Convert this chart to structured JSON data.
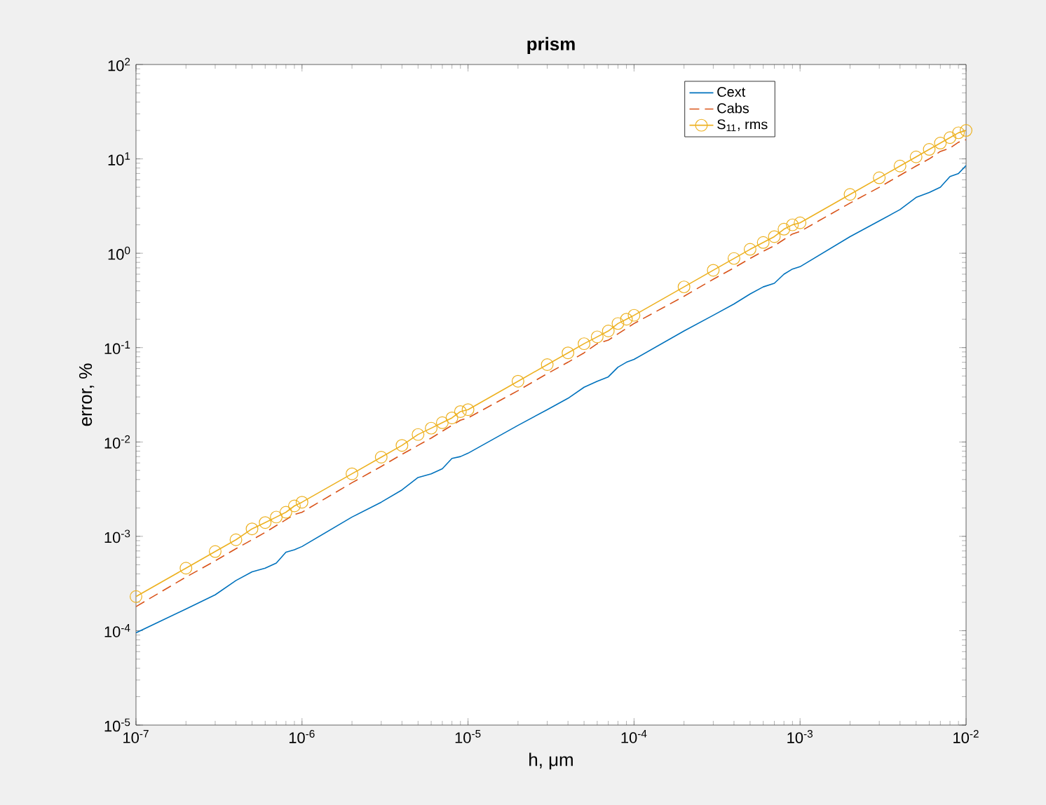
{
  "chart_data": {
    "type": "line",
    "title": "prism",
    "xlabel": "h, μm",
    "ylabel": "error, %",
    "x": [
      1e-07,
      2e-07,
      3e-07,
      4e-07,
      5e-07,
      6e-07,
      7e-07,
      8e-07,
      9e-07,
      1e-06,
      2e-06,
      3e-06,
      4e-06,
      5e-06,
      6e-06,
      7e-06,
      8e-06,
      9e-06,
      1e-05,
      2e-05,
      3e-05,
      4e-05,
      5e-05,
      6e-05,
      7e-05,
      8e-05,
      9e-05,
      0.0001,
      0.0002,
      0.0003,
      0.0004,
      0.0005,
      0.0006,
      0.0007,
      0.0008,
      0.0009,
      0.001,
      0.002,
      0.003,
      0.004,
      0.005,
      0.006,
      0.007,
      0.008,
      0.009,
      0.01
    ],
    "series": [
      {
        "name": "Cext",
        "color": "#0072bd",
        "marker": "none",
        "line_style": "solid",
        "values": [
          9.5e-05,
          0.00017,
          0.00024,
          0.00034,
          0.00042,
          0.00046,
          0.00052,
          0.00068,
          0.00072,
          0.00078,
          0.0016,
          0.0023,
          0.0031,
          0.0042,
          0.0046,
          0.0052,
          0.0067,
          0.007,
          0.0076,
          0.015,
          0.022,
          0.029,
          0.038,
          0.044,
          0.049,
          0.062,
          0.07,
          0.075,
          0.15,
          0.22,
          0.29,
          0.37,
          0.44,
          0.48,
          0.6,
          0.68,
          0.72,
          1.5,
          2.2,
          2.9,
          3.9,
          4.4,
          5.0,
          6.5,
          7.0,
          8.5
        ]
      },
      {
        "name": "Cabs",
        "color": "#d95319",
        "marker": "none",
        "line_style": "dashed",
        "values": [
          0.00018,
          0.00037,
          0.00055,
          0.00074,
          0.00092,
          0.0011,
          0.0013,
          0.0015,
          0.0017,
          0.0018,
          0.0037,
          0.0055,
          0.0074,
          0.0092,
          0.011,
          0.013,
          0.015,
          0.017,
          0.018,
          0.035,
          0.053,
          0.07,
          0.088,
          0.11,
          0.12,
          0.14,
          0.16,
          0.18,
          0.35,
          0.53,
          0.7,
          0.88,
          1.05,
          1.2,
          1.4,
          1.6,
          1.7,
          3.4,
          5,
          6.7,
          8.4,
          10,
          12,
          13,
          15,
          16
        ]
      },
      {
        "name": "S$_{11}$, rms",
        "color": "#edb120",
        "marker": "circle",
        "line_style": "solid",
        "values": [
          0.00023,
          0.00046,
          0.00069,
          0.00092,
          0.0012,
          0.0014,
          0.0016,
          0.0018,
          0.0021,
          0.0023,
          0.0046,
          0.0069,
          0.0092,
          0.012,
          0.014,
          0.016,
          0.018,
          0.021,
          0.022,
          0.044,
          0.066,
          0.088,
          0.11,
          0.13,
          0.15,
          0.18,
          0.2,
          0.22,
          0.44,
          0.66,
          0.88,
          1.1,
          1.3,
          1.5,
          1.8,
          2.0,
          2.1,
          4.2,
          6.3,
          8.4,
          10.5,
          12.6,
          14.7,
          16.8,
          18.9,
          20
        ]
      }
    ],
    "log": "xy",
    "grid": false,
    "legend": "top right",
    "xlim": [
      1e-07,
      0.01
    ],
    "ylim": [
      1e-05,
      100
    ],
    "xticks": [
      {
        "value": 1e-07,
        "label": "10$^{-7}$"
      },
      {
        "value": 1e-06,
        "label": "10$^{-6}$"
      },
      {
        "value": 1e-05,
        "label": "10$^{-5}$"
      },
      {
        "value": 0.0001,
        "label": "10$^{-4}$"
      },
      {
        "value": 0.001,
        "label": "10$^{-3}$"
      },
      {
        "value": 0.01,
        "label": "10$^{-2}$"
      }
    ],
    "yticks": [
      {
        "value": 1e-05,
        "label": "10$^{-5}$"
      },
      {
        "value": 0.0001,
        "label": "10$^{-4}$"
      },
      {
        "value": 0.001,
        "label": "10$^{-3}$"
      },
      {
        "value": 0.01,
        "label": "10$^{-2}$"
      },
      {
        "value": 0.1,
        "label": "10$^{-1}$"
      },
      {
        "value": 1,
        "label": "10$^{0}$"
      },
      {
        "value": 10,
        "label": "10$^{1}$"
      },
      {
        "value": 100,
        "label": "10$^{2}$"
      }
    ]
  }
}
